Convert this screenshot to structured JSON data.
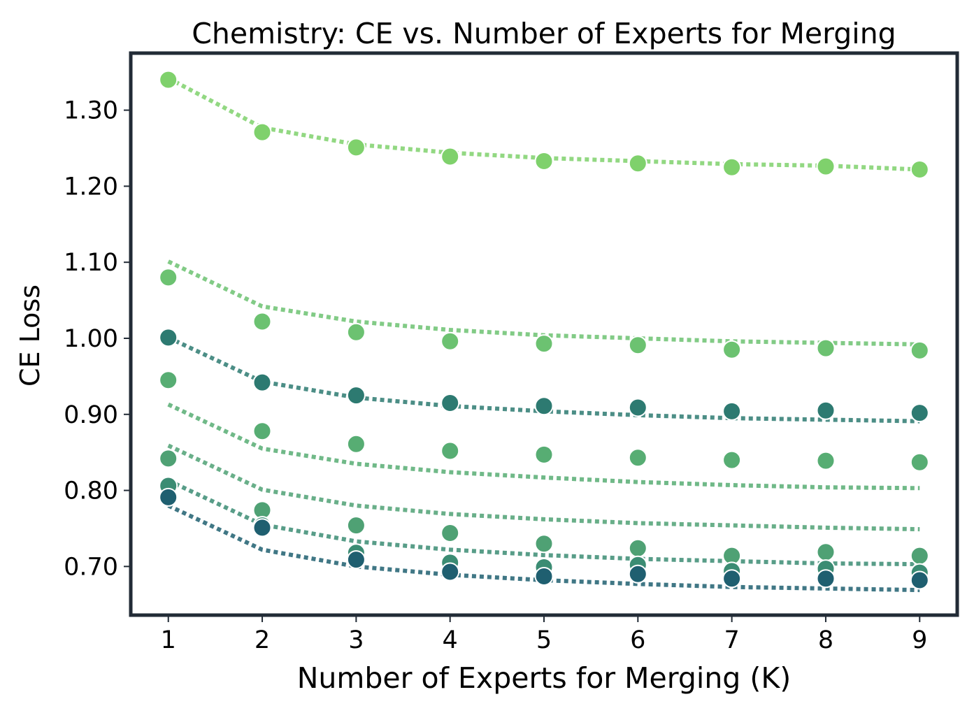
{
  "chart_data": {
    "type": "scatter",
    "title": "Chemistry: CE vs. Number of Experts for Merging",
    "xlabel": "Number of Experts for Merging (K)",
    "ylabel": "CE Loss",
    "x": [
      1,
      2,
      3,
      4,
      5,
      6,
      7,
      8,
      9
    ],
    "xlim": [
      0.6,
      9.4
    ],
    "ylim": [
      0.636,
      1.375
    ],
    "xticks": [
      "1",
      "2",
      "3",
      "4",
      "5",
      "6",
      "7",
      "8",
      "9"
    ],
    "yticks": [
      {
        "value": 0.7,
        "label": "0.70"
      },
      {
        "value": 0.8,
        "label": "0.80"
      },
      {
        "value": 0.9,
        "label": "0.90"
      },
      {
        "value": 1.0,
        "label": "1.00"
      },
      {
        "value": 1.1,
        "label": "1.10"
      },
      {
        "value": 1.2,
        "label": "1.20"
      },
      {
        "value": 1.3,
        "label": "1.30"
      }
    ],
    "grid": false,
    "series": [
      {
        "color": "#7fd16c",
        "points": [
          1.34,
          1.271,
          1.251,
          1.239,
          1.233,
          1.23,
          1.225,
          1.226,
          1.222
        ],
        "fit": [
          1.342,
          1.277,
          1.255,
          1.244,
          1.237,
          1.233,
          1.229,
          1.227,
          1.222
        ]
      },
      {
        "color": "#6cc271",
        "points": [
          1.08,
          1.022,
          1.008,
          0.996,
          0.993,
          0.991,
          0.985,
          0.987,
          0.984
        ],
        "fit": [
          1.101,
          1.042,
          1.022,
          1.011,
          1.004,
          1.0,
          0.996,
          0.994,
          0.992
        ]
      },
      {
        "color": "#57ad73",
        "points": [
          0.945,
          0.878,
          0.861,
          0.852,
          0.847,
          0.843,
          0.84,
          0.839,
          0.837
        ],
        "fit": [
          0.913,
          0.855,
          0.835,
          0.824,
          0.817,
          0.811,
          0.807,
          0.804,
          0.803
        ]
      },
      {
        "color": "#4fa174",
        "points": [
          0.842,
          0.774,
          0.754,
          0.744,
          0.73,
          0.724,
          0.714,
          0.719,
          0.714
        ],
        "fit": [
          0.859,
          0.801,
          0.78,
          0.769,
          0.762,
          0.757,
          0.754,
          0.751,
          0.749
        ]
      },
      {
        "color": "#2d7a71",
        "points": [
          1.001,
          0.942,
          0.925,
          0.915,
          0.911,
          0.909,
          0.904,
          0.905,
          0.902
        ],
        "fit": [
          1.001,
          0.943,
          0.922,
          0.911,
          0.904,
          0.899,
          0.895,
          0.893,
          0.891
        ]
      },
      {
        "color": "#3b8c73",
        "points": [
          0.806,
          0.754,
          0.718,
          0.705,
          0.699,
          0.702,
          0.694,
          0.697,
          0.692
        ],
        "fit": [
          0.813,
          0.755,
          0.733,
          0.722,
          0.715,
          0.71,
          0.707,
          0.704,
          0.703
        ]
      },
      {
        "color": "#1f5f70",
        "points": [
          0.791,
          0.751,
          0.709,
          0.693,
          0.687,
          0.69,
          0.684,
          0.684,
          0.682
        ],
        "fit": [
          0.78,
          0.722,
          0.7,
          0.689,
          0.682,
          0.677,
          0.673,
          0.671,
          0.669
        ]
      }
    ]
  }
}
